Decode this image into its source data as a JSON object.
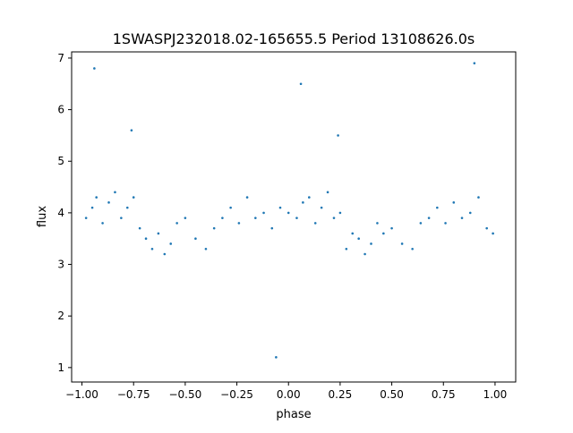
{
  "chart_data": {
    "type": "scatter",
    "title": "1SWASPJ232018.02-165655.5 Period 13108626.0s",
    "xlabel": "phase",
    "ylabel": "flux",
    "xlim": [
      -1.05,
      1.1
    ],
    "ylim": [
      0.72,
      7.12
    ],
    "xticks": [
      -1.0,
      -0.75,
      -0.5,
      -0.25,
      0.0,
      0.25,
      0.5,
      0.75,
      1.0
    ],
    "xtick_labels": [
      "−1.00",
      "−0.75",
      "−0.50",
      "−0.25",
      "0.00",
      "0.25",
      "0.50",
      "0.75",
      "1.00"
    ],
    "yticks": [
      1,
      2,
      3,
      4,
      5,
      6,
      7
    ],
    "ytick_labels": [
      "1",
      "2",
      "3",
      "4",
      "5",
      "6",
      "7"
    ],
    "grid": false,
    "legend": "none",
    "series": [
      {
        "color": "#1f77b4",
        "x": [
          -0.98,
          -0.95,
          -0.93,
          -0.9,
          -0.87,
          -0.84,
          -0.81,
          -0.78,
          -0.75,
          -0.72,
          -0.69,
          -0.66,
          -0.63,
          -0.6,
          -0.57,
          -0.54,
          -0.5,
          -0.45,
          -0.4,
          -0.36,
          -0.32,
          -0.28,
          -0.24,
          -0.2,
          -0.16,
          -0.12,
          -0.08,
          -0.04,
          0.0,
          0.04,
          0.07,
          0.1,
          0.13,
          0.16,
          0.19,
          0.22,
          0.25,
          0.28,
          0.31,
          0.34,
          0.37,
          0.4,
          0.43,
          0.46,
          0.5,
          0.55,
          0.6,
          0.64,
          0.68,
          0.72,
          0.76,
          0.8,
          0.84,
          0.88,
          0.92,
          0.96,
          0.99,
          -0.94,
          -0.06,
          0.06,
          0.9,
          -0.76,
          0.24
        ],
        "y": [
          3.9,
          4.1,
          4.3,
          3.8,
          4.2,
          4.4,
          3.9,
          4.1,
          4.3,
          3.7,
          3.5,
          3.3,
          3.6,
          3.2,
          3.4,
          3.8,
          3.9,
          3.5,
          3.3,
          3.7,
          3.9,
          4.1,
          3.8,
          4.3,
          3.9,
          4.0,
          3.7,
          4.1,
          4.0,
          3.9,
          4.2,
          4.3,
          3.8,
          4.1,
          4.4,
          3.9,
          4.0,
          3.3,
          3.6,
          3.5,
          3.2,
          3.4,
          3.8,
          3.6,
          3.7,
          3.4,
          3.3,
          3.8,
          3.9,
          4.1,
          3.8,
          4.2,
          3.9,
          4.0,
          4.3,
          3.7,
          3.6,
          6.8,
          1.2,
          6.5,
          6.9,
          5.6,
          5.5
        ]
      }
    ]
  }
}
